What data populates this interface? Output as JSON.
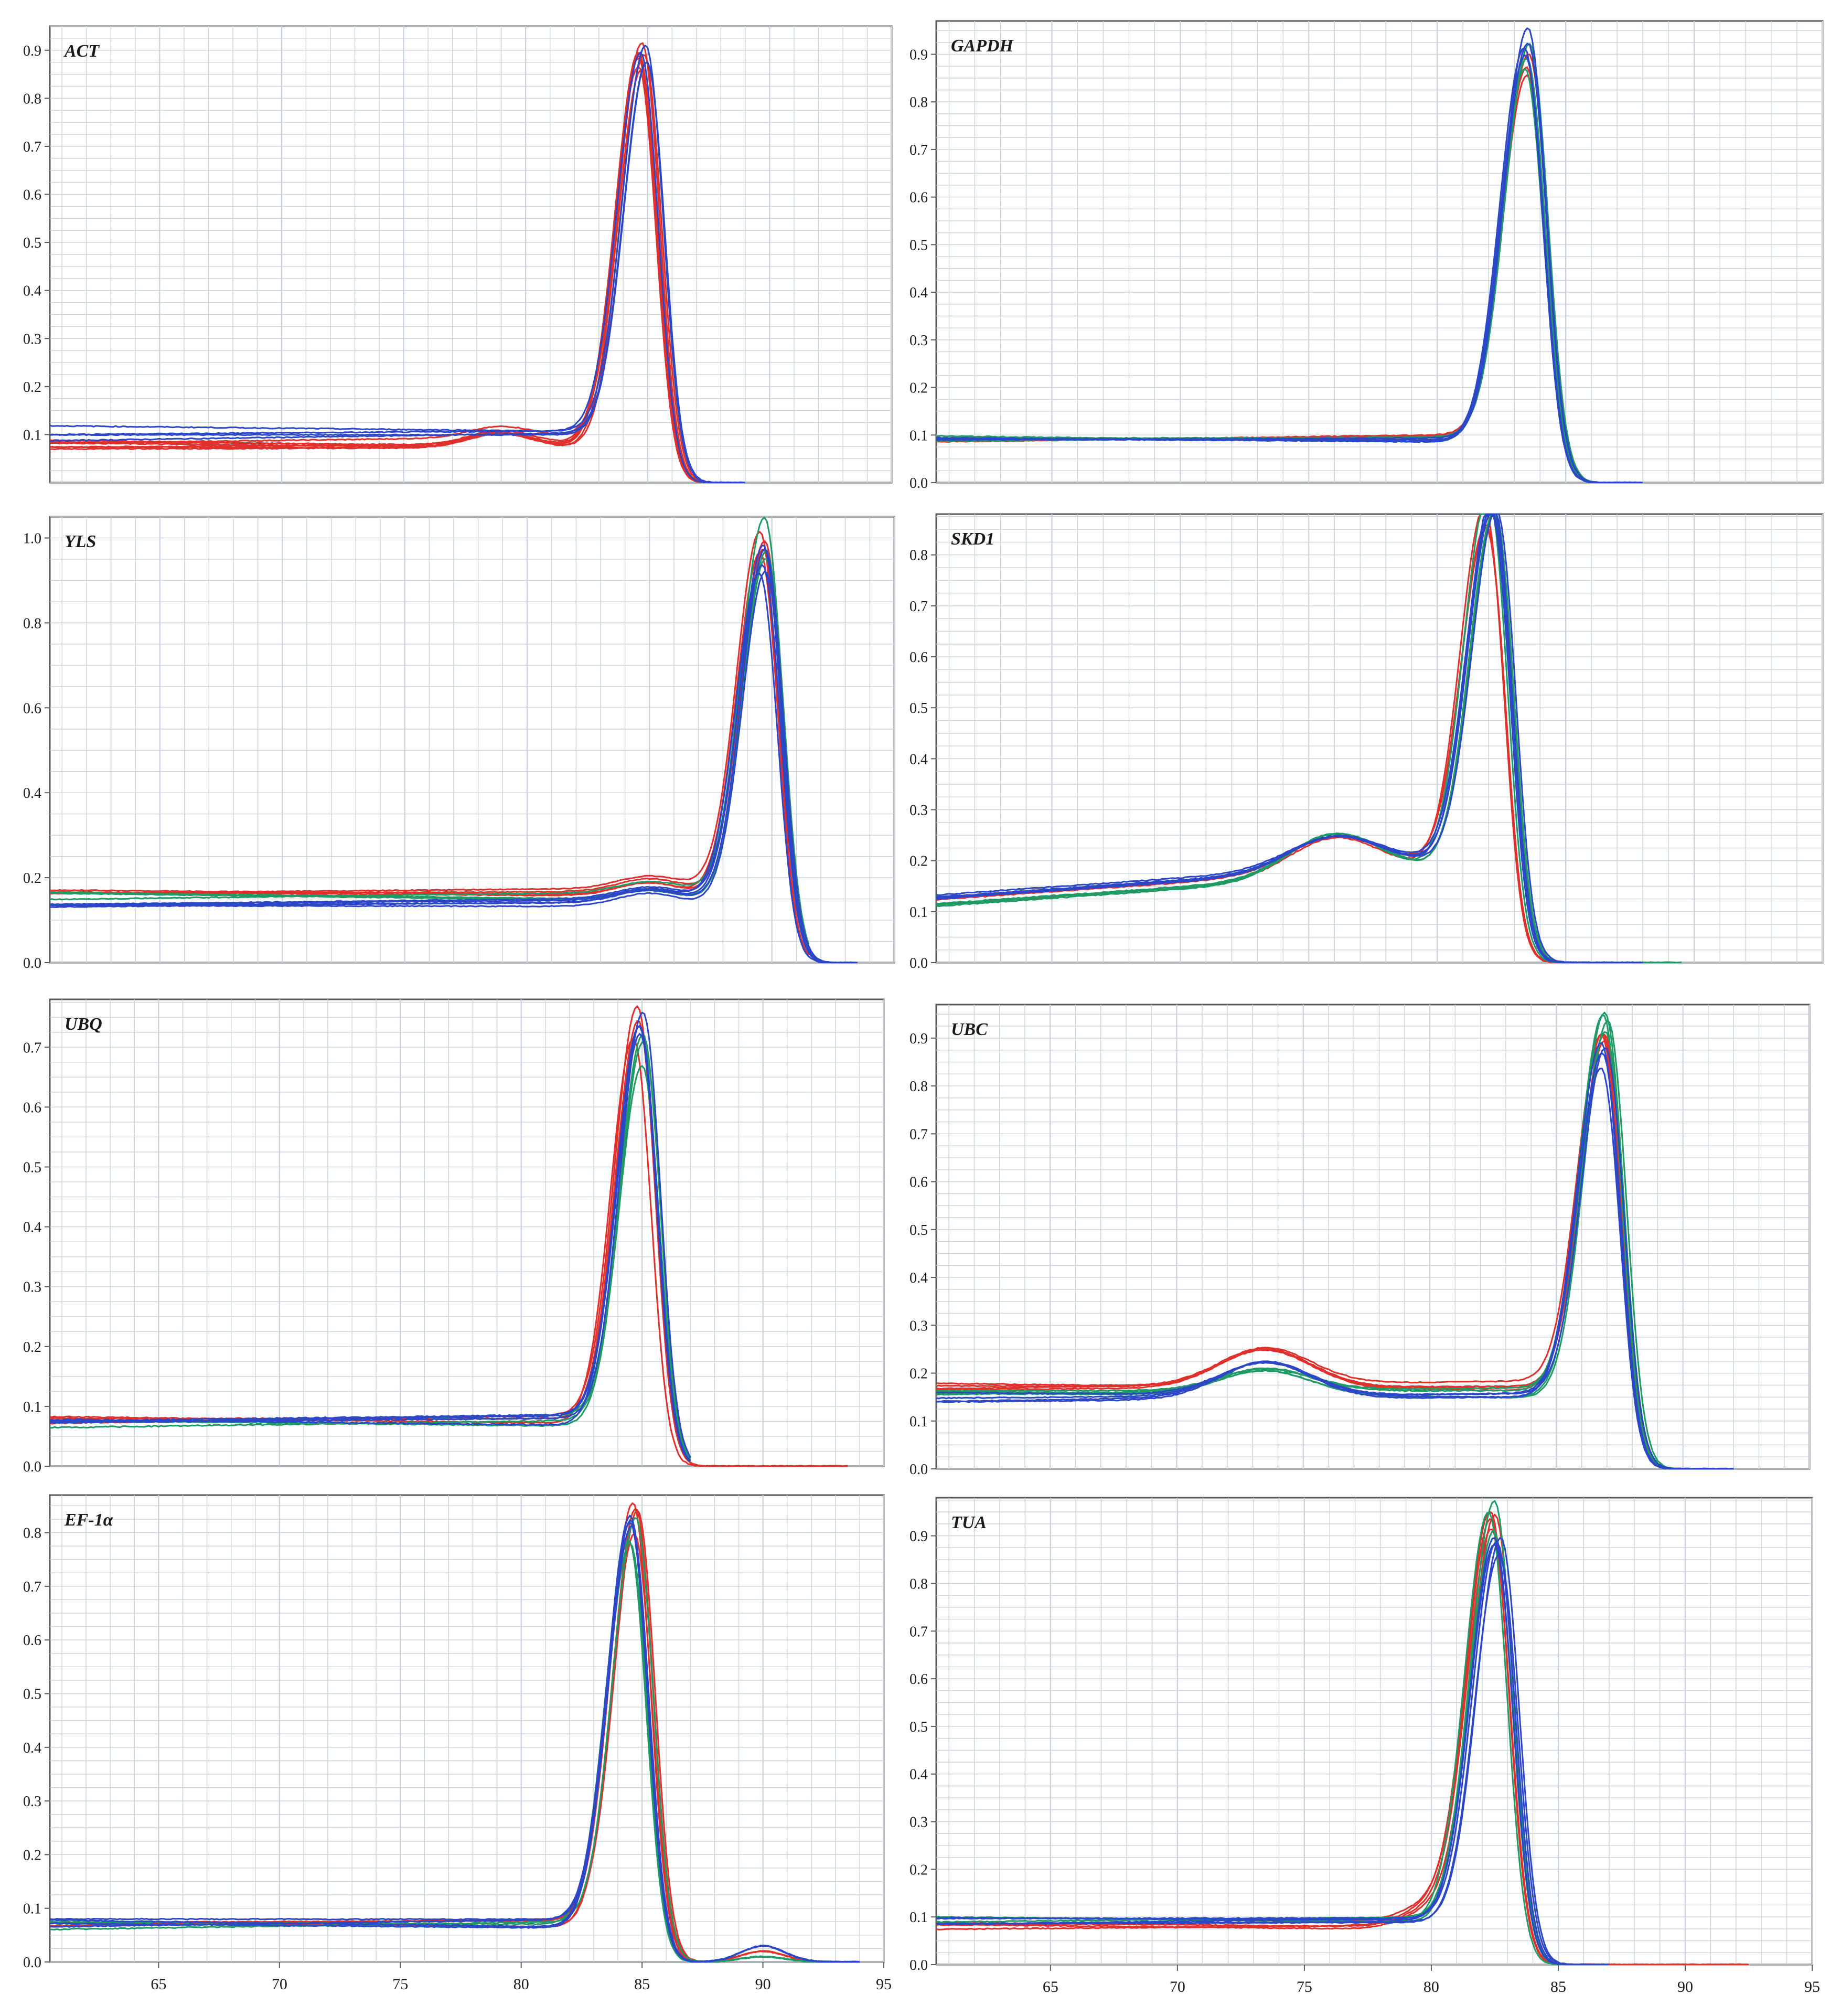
{
  "figure": {
    "colors": {
      "red": "#e0302c",
      "blue": "#2c46c8",
      "green": "#1f9a64",
      "grid": "#c9d2dc",
      "axis": "#5a5a5a",
      "text": "#1a1a1a"
    },
    "panels": [
      {
        "id": "act",
        "label": "ACT",
        "ytick_labels": [
          "0.1",
          "0.2",
          "0.3",
          "0.4",
          "0.5",
          "0.6",
          "0.7",
          "0.8",
          "0.9"
        ],
        "xtick_labels": []
      },
      {
        "id": "gapdh",
        "label": "GAPDH",
        "ytick_labels": [
          "0.0",
          "0.1",
          "0.2",
          "0.3",
          "0.4",
          "0.5",
          "0.6",
          "0.7",
          "0.8",
          "0.9"
        ],
        "xtick_labels": []
      },
      {
        "id": "yls",
        "label": "YLS",
        "ytick_labels": [
          "0.0",
          "0.2",
          "0.4",
          "0.6",
          "0.8",
          "1.0"
        ],
        "xtick_labels": []
      },
      {
        "id": "skd1",
        "label": "SKD1",
        "ytick_labels": [
          "0.0",
          "0.1",
          "0.2",
          "0.3",
          "0.4",
          "0.5",
          "0.6",
          "0.7",
          "0.8"
        ],
        "xtick_labels": []
      },
      {
        "id": "ubq",
        "label": "UBQ",
        "ytick_labels": [
          "0.0",
          "0.1",
          "0.2",
          "0.3",
          "0.4",
          "0.5",
          "0.6",
          "0.7"
        ],
        "xtick_labels": []
      },
      {
        "id": "ubc",
        "label": "UBC",
        "ytick_labels": [
          "0.0",
          "0.1",
          "0.2",
          "0.3",
          "0.4",
          "0.5",
          "0.6",
          "0.7",
          "0.8",
          "0.9"
        ],
        "xtick_labels": []
      },
      {
        "id": "ef1a",
        "label": "EF-1α",
        "ytick_labels": [
          "0.0",
          "0.1",
          "0.2",
          "0.3",
          "0.4",
          "0.5",
          "0.6",
          "0.7",
          "0.8"
        ],
        "xtick_labels": [
          "65",
          "70",
          "75",
          "80",
          "85",
          "90",
          "95"
        ]
      },
      {
        "id": "tua",
        "label": "TUA",
        "ytick_labels": [
          "0.0",
          "0.1",
          "0.2",
          "0.3",
          "0.4",
          "0.5",
          "0.6",
          "0.7",
          "0.8",
          "0.9"
        ],
        "xtick_labels": [
          "65",
          "70",
          "75",
          "80",
          "85",
          "90",
          "95"
        ]
      }
    ]
  },
  "chart_data": [
    {
      "type": "line",
      "title": "ACT",
      "xlim": [
        60.5,
        95
      ],
      "ylim": [
        0.0,
        0.95
      ],
      "grid": true,
      "series": [
        {
          "color": "red",
          "curves": 7,
          "baseline": [
            0.06,
            0.12
          ],
          "shoulder": [
            79,
            0.13
          ],
          "peak_x": 84.75,
          "peak_y": 0.92,
          "end_x": 87.2
        },
        {
          "color": "blue",
          "curves": 4,
          "baseline": [
            0.09,
            0.12
          ],
          "peak_x": 84.85,
          "peak_y": 0.93,
          "end_x": 89
        }
      ]
    },
    {
      "type": "line",
      "title": "GAPDH",
      "xlim": [
        60.5,
        95
      ],
      "ylim": [
        0.0,
        0.97
      ],
      "grid": true,
      "series": [
        {
          "color": "red",
          "curves": 3,
          "baseline": [
            0.09,
            0.095
          ],
          "peak_x": 83.6,
          "peak_y": 0.9,
          "end_x": 86
        },
        {
          "color": "green",
          "curves": 3,
          "baseline": [
            0.09,
            0.095
          ],
          "peak_x": 83.5,
          "peak_y": 0.94,
          "end_x": 86
        },
        {
          "color": "blue",
          "curves": 4,
          "baseline": [
            0.085,
            0.095
          ],
          "peak_x": 83.5,
          "peak_y": 0.97,
          "end_x": 88
        }
      ]
    },
    {
      "type": "line",
      "title": "YLS",
      "xlim": [
        60.5,
        95
      ],
      "ylim": [
        0.0,
        1.05
      ],
      "grid": true,
      "series": [
        {
          "color": "red",
          "curves": 4,
          "baseline": [
            0.16,
            0.17
          ],
          "shoulder": [
            85,
            0.22
          ],
          "peak_x": 89.6,
          "peak_y": 1.02,
          "end_x": 91.5
        },
        {
          "color": "green",
          "curves": 3,
          "baseline": [
            0.15,
            0.16
          ],
          "shoulder": [
            85,
            0.2
          ],
          "peak_x": 89.7,
          "peak_y": 1.04,
          "end_x": 91.5
        },
        {
          "color": "blue",
          "curves": 5,
          "baseline": [
            0.13,
            0.15
          ],
          "shoulder": [
            85,
            0.19
          ],
          "peak_x": 89.6,
          "peak_y": 0.98,
          "end_x": 93.5
        }
      ]
    },
    {
      "type": "line",
      "title": "SKD1",
      "xlim": [
        60.5,
        95
      ],
      "ylim": [
        0.0,
        0.88
      ],
      "grid": true,
      "series": [
        {
          "color": "red",
          "curves": 3,
          "baseline": [
            0.11,
            0.13
          ],
          "hump": [
            76,
            0.21
          ],
          "peak_x": 82.0,
          "peak_y": 0.83,
          "end_x": 86
        },
        {
          "color": "green",
          "curves": 3,
          "baseline": [
            0.1,
            0.12
          ],
          "hump": [
            76,
            0.22
          ],
          "peak_x": 82.1,
          "peak_y": 0.85,
          "end_x": 89.5
        },
        {
          "color": "blue",
          "curves": 5,
          "baseline": [
            0.12,
            0.14
          ],
          "hump": [
            76,
            0.21
          ],
          "peak_x": 82.2,
          "peak_y": 0.87,
          "end_x": 88
        }
      ]
    },
    {
      "type": "line",
      "title": "UBQ",
      "xlim": [
        60.5,
        95
      ],
      "ylim": [
        0.0,
        0.78
      ],
      "grid": true,
      "series": [
        {
          "color": "red",
          "curves": 3,
          "baseline": [
            0.075,
            0.085
          ],
          "peak_x": 84.75,
          "peak_y": 0.77,
          "end_x": 93.5
        },
        {
          "color": "green",
          "curves": 3,
          "baseline": [
            0.068,
            0.078
          ],
          "peak_x": 85.0,
          "peak_y": 0.72,
          "end_x": 87
        },
        {
          "color": "blue",
          "curves": 4,
          "baseline": [
            0.07,
            0.082
          ],
          "peak_x": 84.9,
          "peak_y": 0.76,
          "end_x": 87
        }
      ]
    },
    {
      "type": "line",
      "title": "UBC",
      "xlim": [
        60.5,
        95
      ],
      "ylim": [
        0.0,
        0.97
      ],
      "grid": true,
      "series": [
        {
          "color": "red",
          "curves": 4,
          "baseline": [
            0.16,
            0.18
          ],
          "hump": [
            73.5,
            0.27
          ],
          "peak_x": 86.8,
          "peak_y": 0.93,
          "end_x": 89
        },
        {
          "color": "green",
          "curves": 4,
          "baseline": [
            0.15,
            0.17
          ],
          "hump": [
            73.5,
            0.22
          ],
          "peak_x": 86.9,
          "peak_y": 0.96,
          "end_x": 91
        },
        {
          "color": "blue",
          "curves": 4,
          "baseline": [
            0.14,
            0.17
          ],
          "hump": [
            73.5,
            0.24
          ],
          "peak_x": 86.9,
          "peak_y": 0.9,
          "end_x": 92
        }
      ]
    },
    {
      "type": "line",
      "title": "EF-1α",
      "xlim": [
        60.5,
        95
      ],
      "xlabel": "",
      "ylim": [
        0.0,
        0.87
      ],
      "grid": true,
      "series": [
        {
          "color": "red",
          "curves": 4,
          "baseline": [
            0.065,
            0.08
          ],
          "second_peak": [
            90,
            0.02
          ],
          "peak_x": 84.7,
          "peak_y": 0.86,
          "end_x": 94
        },
        {
          "color": "green",
          "curves": 3,
          "baseline": [
            0.065,
            0.075
          ],
          "second_peak": [
            90,
            0.01
          ],
          "peak_x": 84.6,
          "peak_y": 0.83,
          "end_x": 94
        },
        {
          "color": "blue",
          "curves": 4,
          "baseline": [
            0.065,
            0.08
          ],
          "second_peak": [
            90,
            0.03
          ],
          "peak_x": 84.6,
          "peak_y": 0.85,
          "end_x": 94
        }
      ]
    },
    {
      "type": "line",
      "title": "TUA",
      "xlim": [
        60.5,
        95
      ],
      "xlabel": "",
      "ylim": [
        0.0,
        0.98
      ],
      "grid": true,
      "series": [
        {
          "color": "red",
          "curves": 4,
          "baseline": [
            0.07,
            0.1
          ],
          "shoulder": [
            80.5,
            0.17
          ],
          "peak_x": 82.4,
          "peak_y": 0.95,
          "end_x": 92.5
        },
        {
          "color": "green",
          "curves": 3,
          "baseline": [
            0.09,
            0.1
          ],
          "peak_x": 82.4,
          "peak_y": 0.97,
          "end_x": 86
        },
        {
          "color": "blue",
          "curves": 5,
          "baseline": [
            0.085,
            0.1
          ],
          "peak_x": 82.6,
          "peak_y": 0.92,
          "end_x": 87
        }
      ]
    }
  ]
}
